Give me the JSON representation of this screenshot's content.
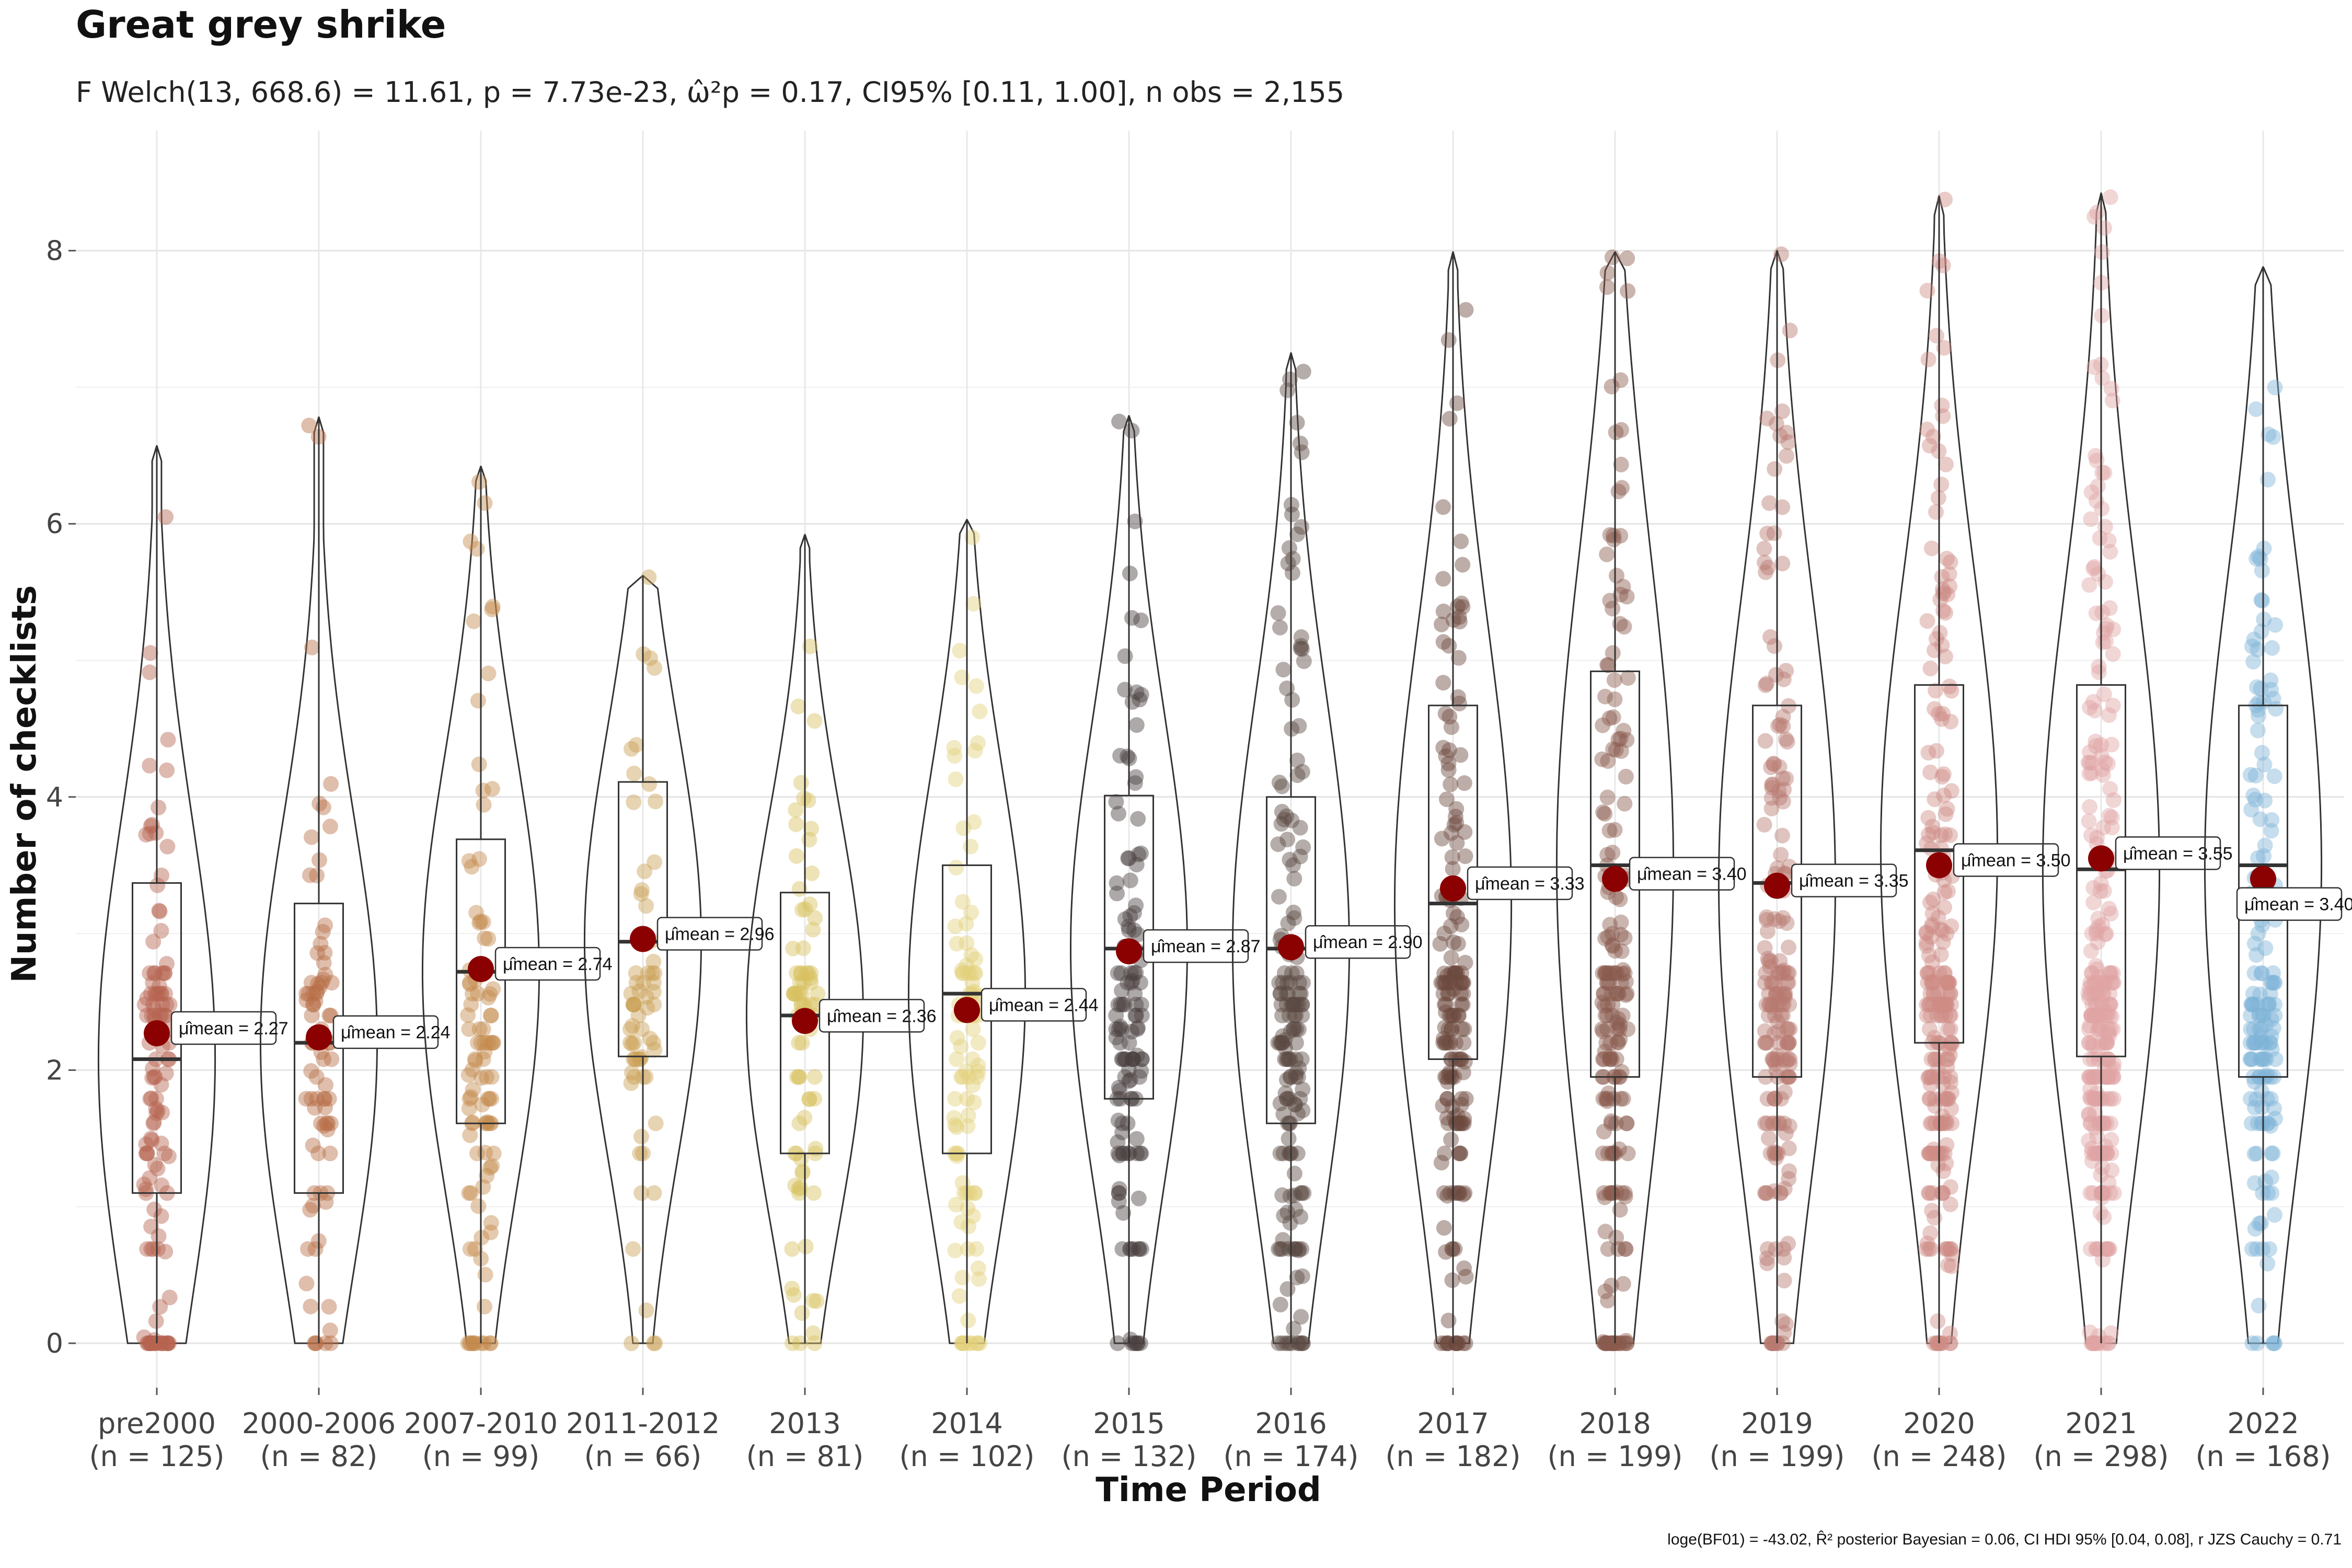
{
  "chart_data": {
    "type": "violin-box-scatter",
    "title": "Great grey shrike",
    "subtitle": "F Welch(13, 668.6) = 11.61, p = 7.73e-23, ω̂²p = 0.17, CI95% [0.11, 1.00], n obs = 2,155",
    "xlabel": "Time Period",
    "ylabel": "Number of checklists",
    "ylim": [
      -0.4,
      8.6
    ],
    "yticks": [
      "0",
      "2",
      "4",
      "6",
      "8"
    ],
    "ytick_values": [
      0,
      2,
      4,
      6,
      8
    ],
    "grid": true,
    "caption": "loge(BF01) = -43.02, R̂² posterior Bayesian = 0.06, CI HDI 95% [0.04, 0.08], r JZS Cauchy = 0.71",
    "mean_prefix": "μ̂mean = ",
    "groups": [
      {
        "category": "pre2000",
        "n_label": "(n = 125)",
        "mean": 2.27,
        "mean_label": "2.27",
        "median": 2.08,
        "q1": 1.1,
        "q3": 3.37,
        "max": 6.57,
        "color": "#b5644f"
      },
      {
        "category": "2000-2006",
        "n_label": "(n = 82)",
        "mean": 2.24,
        "mean_label": "2.24",
        "median": 2.2,
        "q1": 1.1,
        "q3": 3.22,
        "max": 6.78,
        "color": "#b86f48"
      },
      {
        "category": "2007-2010",
        "n_label": "(n = 99)",
        "mean": 2.74,
        "mean_label": "2.74",
        "median": 2.72,
        "q1": 1.61,
        "q3": 3.69,
        "max": 6.42,
        "color": "#c48a4c"
      },
      {
        "category": "2011-2012",
        "n_label": "(n = 66)",
        "mean": 2.96,
        "mean_label": "2.96",
        "median": 2.94,
        "q1": 2.1,
        "q3": 4.11,
        "max": 5.62,
        "color": "#c9a055"
      },
      {
        "category": "2013",
        "n_label": "(n = 81)",
        "mean": 2.36,
        "mean_label": "2.36",
        "median": 2.4,
        "q1": 1.39,
        "q3": 3.3,
        "max": 5.92,
        "color": "#d8c060"
      },
      {
        "category": "2014",
        "n_label": "(n = 102)",
        "mean": 2.44,
        "mean_label": "2.44",
        "median": 2.56,
        "q1": 1.39,
        "q3": 3.5,
        "max": 6.03,
        "color": "#e3d07a"
      },
      {
        "category": "2015",
        "n_label": "(n = 132)",
        "mean": 2.87,
        "mean_label": "2.87",
        "median": 2.89,
        "q1": 1.79,
        "q3": 4.01,
        "max": 6.79,
        "color": "#4c4040"
      },
      {
        "category": "2016",
        "n_label": "(n = 174)",
        "mean": 2.9,
        "mean_label": "2.90",
        "median": 2.89,
        "q1": 1.61,
        "q3": 4.0,
        "max": 7.25,
        "color": "#5a4a42"
      },
      {
        "category": "2017",
        "n_label": "(n = 182)",
        "mean": 3.33,
        "mean_label": "3.33",
        "median": 3.22,
        "q1": 2.08,
        "q3": 4.67,
        "max": 7.99,
        "color": "#6d4a3e"
      },
      {
        "category": "2018",
        "n_label": "(n = 199)",
        "mean": 3.4,
        "mean_label": "3.40",
        "median": 3.5,
        "q1": 1.95,
        "q3": 4.92,
        "max": 7.99,
        "color": "#8a5a4e"
      },
      {
        "category": "2019",
        "n_label": "(n = 199)",
        "mean": 3.35,
        "mean_label": "3.35",
        "median": 3.37,
        "q1": 1.95,
        "q3": 4.67,
        "max": 8.0,
        "color": "#b87a72"
      },
      {
        "category": "2020",
        "n_label": "(n = 248)",
        "mean": 3.5,
        "mean_label": "3.50",
        "median": 3.61,
        "q1": 2.2,
        "q3": 4.82,
        "max": 8.4,
        "color": "#cf8c84"
      },
      {
        "category": "2021",
        "n_label": "(n = 298)",
        "mean": 3.55,
        "mean_label": "3.55",
        "median": 3.47,
        "q1": 2.1,
        "q3": 4.82,
        "max": 8.42,
        "color": "#e0a4a4"
      },
      {
        "category": "2022",
        "n_label": "(n = 168)",
        "mean": 3.4,
        "mean_label": "3.40",
        "median": 3.5,
        "q1": 1.95,
        "q3": 4.67,
        "max": 7.88,
        "color": "#7fb3d8"
      }
    ]
  }
}
